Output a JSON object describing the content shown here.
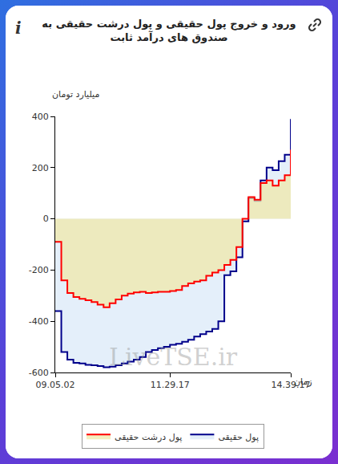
{
  "chart_data": {
    "type": "line",
    "title": "ورود و خروج پول حقیقی و پول درشت حقیقی به صندوق های درآمد ثابت",
    "y_label": "میلیارد تومان",
    "x_label": "زمان",
    "annotations": [
      {
        "text": "LiveTSE.ir"
      }
    ],
    "categories": [
      "09.05.02",
      null,
      null,
      null,
      null,
      null,
      null,
      null,
      null,
      null,
      null,
      null,
      null,
      null,
      null,
      null,
      null,
      null,
      null,
      "11.29.17",
      null,
      null,
      null,
      null,
      null,
      null,
      null,
      null,
      null,
      null,
      null,
      null,
      null,
      null,
      null,
      null,
      null,
      null,
      null,
      "14.39.17"
    ],
    "series": [
      {
        "name": "پول حقیقی",
        "color": "#00008b",
        "values": [
          -360,
          -520,
          -550,
          -562,
          -565,
          -570,
          -572,
          -575,
          -580,
          -577,
          -572,
          -565,
          -558,
          -550,
          -540,
          -520,
          -512,
          -505,
          -500,
          -492,
          -488,
          -480,
          -472,
          -460,
          -450,
          -440,
          -430,
          -400,
          -220,
          -205,
          -150,
          -10,
          80,
          70,
          150,
          200,
          190,
          225,
          250,
          390
        ]
      },
      {
        "name": "پول درشت حقیقی",
        "color": "#ff0000",
        "values": [
          -90,
          -240,
          -290,
          -305,
          -312,
          -318,
          -325,
          -335,
          -345,
          -330,
          -315,
          -300,
          -292,
          -287,
          -285,
          -290,
          -287,
          -285,
          -285,
          -282,
          -278,
          -262,
          -252,
          -245,
          -240,
          -222,
          -210,
          -200,
          -180,
          -160,
          -110,
          0,
          85,
          75,
          140,
          150,
          130,
          150,
          170,
          270
        ]
      }
    ],
    "ylim": [
      -600,
      400
    ],
    "yticks": [
      -600,
      -400,
      -200,
      0,
      200,
      400
    ],
    "grid": false,
    "legend": "bottom"
  }
}
